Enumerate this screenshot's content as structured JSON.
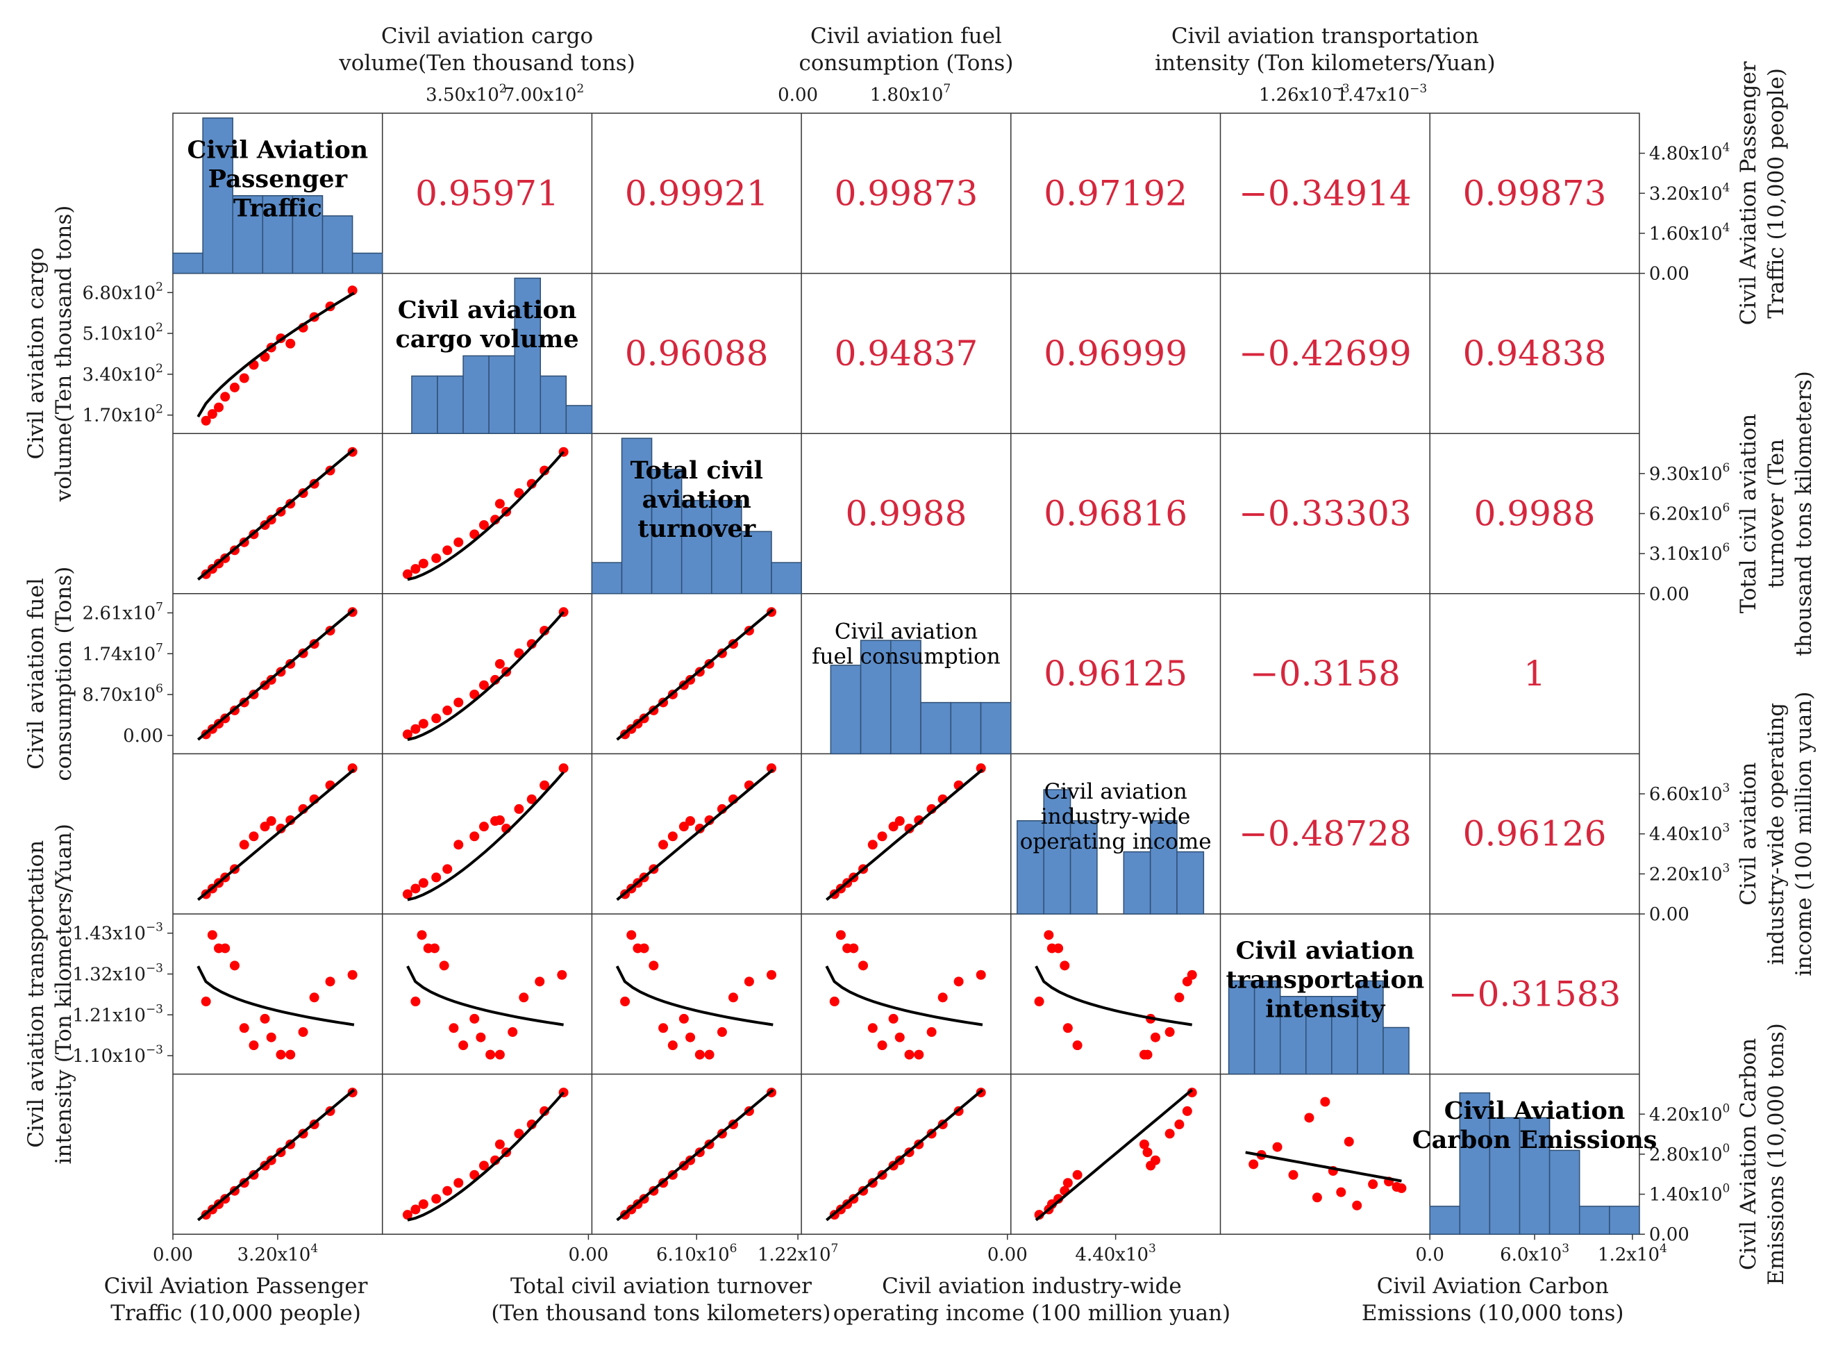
{
  "chart_data": {
    "type": "scatter-matrix",
    "variables": [
      {
        "name": "Civil Aviation Passenger Traffic",
        "diag_label": [
          "Civil Aviation",
          "Passenger",
          "Traffic"
        ],
        "side_label": [
          "Civil Aviation Passenger",
          "Traffic (10,000 people)"
        ],
        "bottom_label": [
          "Civil Aviation Passenger",
          "Traffic (10,000 people)"
        ]
      },
      {
        "name": "Civil aviation cargo volume",
        "diag_label": [
          "Civil aviation",
          "cargo volume"
        ],
        "top_label": [
          "Civil aviation cargo",
          "volume(Ten thousand tons)"
        ],
        "left_label": [
          "Civil aviation cargo",
          "volume(Ten thousand tons)"
        ]
      },
      {
        "name": "Total civil aviation turnover",
        "diag_label": [
          "Total civil",
          "aviation",
          "turnover"
        ],
        "side_label": [
          "Total civil aviation",
          "turnover (Ten",
          "thousand tons kilometers)"
        ],
        "bottom_label": [
          "Total civil aviation turnover",
          "(Ten thousand tons kilometers)"
        ]
      },
      {
        "name": "Civil aviation fuel consumption",
        "diag_label": [
          "Civil aviation",
          "fuel consumption"
        ],
        "top_label": [
          "Civil aviation fuel",
          "consumption (Tons)"
        ],
        "left_label": [
          "Civil aviation fuel",
          "consumption (Tons)"
        ]
      },
      {
        "name": "Civil aviation industry-wide operating income",
        "diag_label": [
          "Civil aviation",
          "industry-wide",
          "operating income"
        ],
        "side_label": [
          "Civil aviation",
          "industry-wide operating",
          "income (100 million yuan)"
        ],
        "bottom_label": [
          "Civil aviation industry-wide",
          "operating income (100 million yuan)"
        ]
      },
      {
        "name": "Civil aviation transportation intensity",
        "diag_label": [
          "Civil aviation",
          "transportation",
          "intensity"
        ],
        "top_label": [
          "Civil aviation transportation",
          "intensity (Ton kilometers/Yuan)"
        ],
        "left_label": [
          "Civil aviation transportation",
          "intensity (Ton kilometers/Yuan)"
        ]
      },
      {
        "name": "Civil Aviation Carbon Emissions",
        "diag_label": [
          "Civil Aviation",
          "Carbon Emissions"
        ],
        "side_label": [
          "Civil Aviation Carbon",
          "Emissions (10,000 tons)"
        ],
        "bottom_label": [
          "Civil Aviation Carbon",
          "Emissions (10,000 tons)"
        ]
      }
    ],
    "correlations": [
      {
        "row": 0,
        "col": 1,
        "value": "0.95971"
      },
      {
        "row": 0,
        "col": 2,
        "value": "0.99921"
      },
      {
        "row": 0,
        "col": 3,
        "value": "0.99873"
      },
      {
        "row": 0,
        "col": 4,
        "value": "0.97192"
      },
      {
        "row": 0,
        "col": 5,
        "value": "−0.34914"
      },
      {
        "row": 0,
        "col": 6,
        "value": "0.99873"
      },
      {
        "row": 1,
        "col": 2,
        "value": "0.96088"
      },
      {
        "row": 1,
        "col": 3,
        "value": "0.94837"
      },
      {
        "row": 1,
        "col": 4,
        "value": "0.96999"
      },
      {
        "row": 1,
        "col": 5,
        "value": "−0.42699"
      },
      {
        "row": 1,
        "col": 6,
        "value": "0.94838"
      },
      {
        "row": 2,
        "col": 3,
        "value": "0.9988"
      },
      {
        "row": 2,
        "col": 4,
        "value": "0.96816"
      },
      {
        "row": 2,
        "col": 5,
        "value": "−0.33303"
      },
      {
        "row": 2,
        "col": 6,
        "value": "0.9988"
      },
      {
        "row": 3,
        "col": 4,
        "value": "0.96125"
      },
      {
        "row": 3,
        "col": 5,
        "value": "−0.3158"
      },
      {
        "row": 3,
        "col": 6,
        "value": "1"
      },
      {
        "row": 4,
        "col": 5,
        "value": "−0.48728"
      },
      {
        "row": 4,
        "col": 6,
        "value": "0.96126"
      },
      {
        "row": 5,
        "col": 6,
        "value": "−0.31583"
      }
    ],
    "histograms": [
      [
        0.13,
        1.0,
        0.5,
        0.5,
        0.5,
        0.37,
        0.13
      ],
      [
        0.37,
        0.37,
        0.5,
        0.5,
        1.0,
        0.37,
        0.18
      ],
      [
        0.2,
        1.0,
        0.8,
        0.6,
        0.6,
        0.4,
        0.2
      ],
      [
        0.57,
        0.73,
        0.73,
        0.33,
        0.33,
        0.33
      ],
      [
        0.6,
        0.8,
        0.6,
        0.0,
        0.4,
        0.6,
        0.4
      ],
      [
        0.6,
        0.6,
        0.5,
        0.5,
        0.5,
        0.6,
        0.3
      ],
      [
        0.18,
        0.91,
        0.75,
        0.75,
        0.54,
        0.18,
        0.18
      ]
    ],
    "years_points": 15,
    "axis_ticks": {
      "top_cargo": [
        [
          "3.50x10",
          "2"
        ],
        [
          "7.00x10",
          "2"
        ]
      ],
      "top_fuel": [
        [
          "0.00",
          ""
        ],
        [
          "1.80x10",
          "7"
        ]
      ],
      "top_intensity": [
        [
          "1.26x10",
          "−3"
        ],
        [
          "1.47x10",
          "−3"
        ]
      ],
      "bottom_passenger": [
        [
          "0.00",
          ""
        ],
        [
          "3.20x10",
          "4"
        ]
      ],
      "bottom_turnover": [
        [
          "0.00",
          ""
        ],
        [
          "6.10x10",
          "6"
        ],
        [
          "1.22x10",
          "7"
        ]
      ],
      "bottom_income": [
        [
          "0.00",
          ""
        ],
        [
          "4.40x10",
          "3"
        ]
      ],
      "bottom_carbon": [
        [
          "0.0",
          ""
        ],
        [
          "6.0x10",
          "3"
        ],
        [
          "1.2x10",
          "4"
        ]
      ],
      "left_cargo": [
        [
          "6.80x10",
          "2"
        ],
        [
          "5.10x10",
          "2"
        ],
        [
          "3.40x10",
          "2"
        ],
        [
          "1.70x10",
          "2"
        ]
      ],
      "left_fuel": [
        [
          "2.61x10",
          "7"
        ],
        [
          "1.74x10",
          "7"
        ],
        [
          "8.70x10",
          "6"
        ],
        [
          "0.00",
          ""
        ]
      ],
      "left_intensity": [
        [
          "1.43x10",
          "−3"
        ],
        [
          "1.32x10",
          "−3"
        ],
        [
          "1.21x10",
          "−3"
        ],
        [
          "1.10x10",
          "−3"
        ]
      ],
      "right_passenger": [
        [
          "4.80x10",
          "4"
        ],
        [
          "3.20x10",
          "4"
        ],
        [
          "1.60x10",
          "4"
        ],
        [
          "0.00",
          ""
        ]
      ],
      "right_turnover": [
        [
          "9.30x10",
          "6"
        ],
        [
          "6.20x10",
          "6"
        ],
        [
          "3.10x10",
          "6"
        ],
        [
          "0.00",
          ""
        ]
      ],
      "right_income": [
        [
          "6.60x10",
          "3"
        ],
        [
          "4.40x10",
          "3"
        ],
        [
          "2.20x10",
          "3"
        ],
        [
          "0.00",
          ""
        ]
      ],
      "right_carbon": [
        [
          "4.20x10",
          "0"
        ],
        [
          "2.80x10",
          "0"
        ],
        [
          "1.40x10",
          "0"
        ],
        [
          "0.00",
          ""
        ]
      ]
    }
  }
}
